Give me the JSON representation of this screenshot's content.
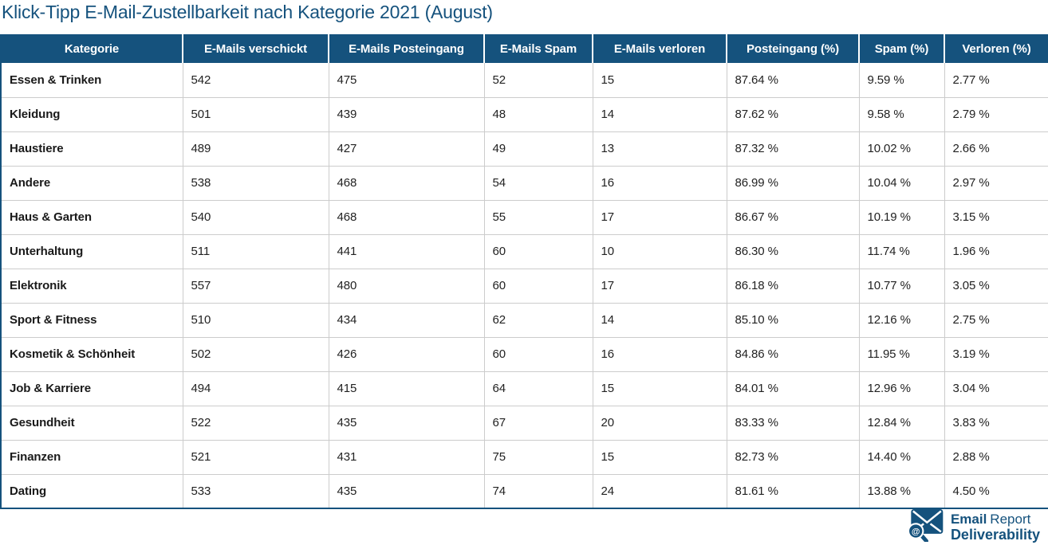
{
  "page_title": "Klick-Tipp E-Mail-Zustellbarkeit nach Kategorie 2021 (August)",
  "colors": {
    "primary_blue": "#15527d",
    "grid_line": "#cccccc",
    "body_text": "#222222",
    "header_text": "#ffffff"
  },
  "chart_data": {
    "type": "table",
    "title": "Klick-Tipp E-Mail-Zustellbarkeit nach Kategorie 2021 (August)",
    "columns": [
      "Kategorie",
      "E-Mails verschickt",
      "E-Mails Posteingang",
      "E-Mails Spam",
      "E-Mails verloren",
      "Posteingang (%)",
      "Spam (%)",
      "Verloren (%)"
    ],
    "rows": [
      [
        "Essen & Trinken",
        "542",
        "475",
        "52",
        "15",
        "87.64 %",
        "9.59 %",
        "2.77 %"
      ],
      [
        "Kleidung",
        "501",
        "439",
        "48",
        "14",
        "87.62 %",
        "9.58 %",
        "2.79 %"
      ],
      [
        "Haustiere",
        "489",
        "427",
        "49",
        "13",
        "87.32 %",
        "10.02 %",
        "2.66 %"
      ],
      [
        "Andere",
        "538",
        "468",
        "54",
        "16",
        "86.99 %",
        "10.04 %",
        "2.97 %"
      ],
      [
        "Haus & Garten",
        "540",
        "468",
        "55",
        "17",
        "86.67 %",
        "10.19 %",
        "3.15 %"
      ],
      [
        "Unterhaltung",
        "511",
        "441",
        "60",
        "10",
        "86.30 %",
        "11.74 %",
        "1.96 %"
      ],
      [
        "Elektronik",
        "557",
        "480",
        "60",
        "17",
        "86.18 %",
        "10.77 %",
        "3.05 %"
      ],
      [
        "Sport & Fitness",
        "510",
        "434",
        "62",
        "14",
        "85.10 %",
        "12.16 %",
        "2.75 %"
      ],
      [
        "Kosmetik & Schönheit",
        "502",
        "426",
        "60",
        "16",
        "84.86 %",
        "11.95 %",
        "3.19 %"
      ],
      [
        "Job & Karriere",
        "494",
        "415",
        "64",
        "15",
        "84.01 %",
        "12.96 %",
        "3.04 %"
      ],
      [
        "Gesundheit",
        "522",
        "435",
        "67",
        "20",
        "83.33 %",
        "12.84 %",
        "3.83 %"
      ],
      [
        "Finanzen",
        "521",
        "431",
        "75",
        "15",
        "82.73 %",
        "14.40 %",
        "2.88 %"
      ],
      [
        "Dating",
        "533",
        "435",
        "74",
        "24",
        "81.61 %",
        "13.88 %",
        "4.50 %"
      ]
    ]
  },
  "logo": {
    "title_bold": "Email",
    "title_regular": "Report",
    "subtitle": "Deliverability"
  }
}
